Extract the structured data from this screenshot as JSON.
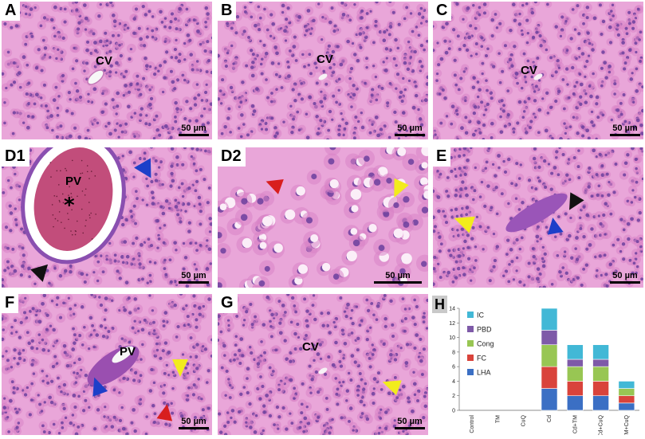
{
  "panels": {
    "A": {
      "label": "A",
      "vessel": "CV",
      "scale": "50 µm"
    },
    "B": {
      "label": "B",
      "vessel": "CV",
      "scale": "50 µm"
    },
    "C": {
      "label": "C",
      "vessel": "CV",
      "scale": "50 µm"
    },
    "D1": {
      "label": "D1",
      "vessel": "PV",
      "mark": "*",
      "scale": "50 µm"
    },
    "D2": {
      "label": "D2",
      "scale": "50 µm"
    },
    "E": {
      "label": "E",
      "scale": "50 µm"
    },
    "F": {
      "label": "F",
      "vessel": "PV",
      "scale": "50 µm"
    },
    "G": {
      "label": "G",
      "vessel": "CV",
      "scale": "50 µm"
    },
    "H": {
      "label": "H"
    }
  },
  "colors": {
    "tissue_bg": "#e9a6d9",
    "cell": "#d883c6",
    "nucleus": "#6b3f9e",
    "arrow_blue": "#1d3fc9",
    "arrow_black": "#111111",
    "arrow_red": "#d81e1e",
    "arrow_yellow": "#f2ec1c"
  },
  "chart_data": {
    "type": "bar",
    "stacked": true,
    "categories": [
      "Control",
      "TM",
      "CuQ",
      "Cd",
      "Cd+TM",
      "Cd+CuQ",
      "Cd+TM+CuQ"
    ],
    "ylim": [
      0,
      14
    ],
    "yticks": [
      0,
      2,
      4,
      6,
      8,
      10,
      12,
      14
    ],
    "legend_position": "top-left",
    "series": [
      {
        "name": "LHA",
        "color": "#3b6fc4",
        "values": [
          0,
          0,
          0,
          3,
          2,
          2,
          1
        ]
      },
      {
        "name": "FC",
        "color": "#d9433b",
        "values": [
          0,
          0,
          0,
          3,
          2,
          2,
          1
        ]
      },
      {
        "name": "Cong",
        "color": "#98c653",
        "values": [
          0,
          0,
          0,
          3,
          2,
          2,
          1
        ]
      },
      {
        "name": "PBD",
        "color": "#7e5aa8",
        "values": [
          0,
          0,
          0,
          2,
          1,
          1,
          0
        ]
      },
      {
        "name": "IC",
        "color": "#42b8d6",
        "values": [
          0,
          0,
          0,
          3,
          2,
          2,
          1
        ]
      }
    ]
  }
}
